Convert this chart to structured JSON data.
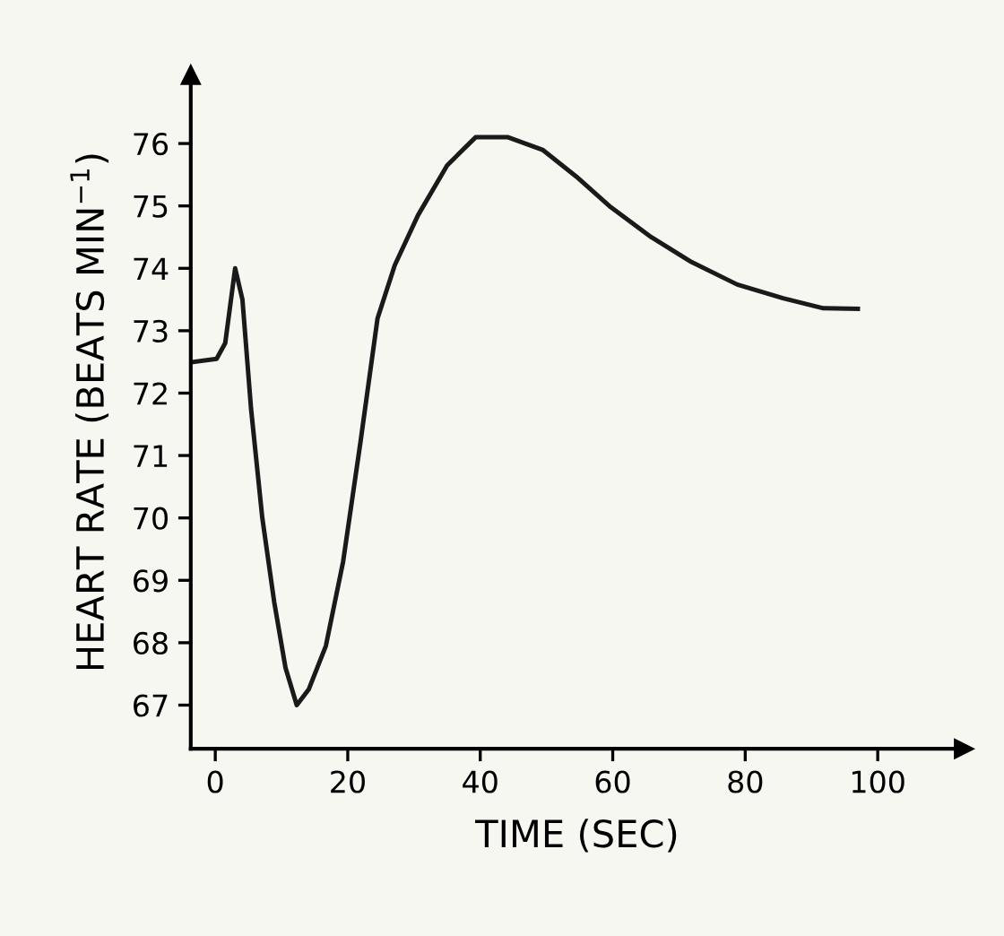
{
  "chart_data": {
    "type": "line",
    "xlabel": "TIME (SEC)",
    "ylabel": "HEART RATE (BEATS MIN$^{−1}$)",
    "x": [
      -3.3,
      0.2,
      1.5,
      3.0,
      4.1,
      5.4,
      7.1,
      8.9,
      10.6,
      12.3,
      14.1,
      16.7,
      19.3,
      21.9,
      24.5,
      27.1,
      30.6,
      35,
      39.3,
      44.2,
      49.4,
      54.5,
      59.7,
      65.8,
      71.9,
      78.8,
      85.7,
      91.8,
      97
    ],
    "series": [
      {
        "color": "#1a1a1a",
        "values": [
          72.5,
          72.55,
          72.8,
          74.0,
          73.5,
          71.75,
          70.0,
          68.65,
          67.6,
          67.0,
          67.25,
          67.95,
          69.3,
          71.2,
          73.2,
          74.05,
          74.85,
          75.65,
          76.1,
          76.1,
          75.9,
          75.47,
          74.98,
          74.5,
          74.1,
          73.74,
          73.52,
          73.36,
          73.35
        ]
      }
    ],
    "xlim": [
      -3.7,
      113
    ],
    "ylim": [
      66.3,
      77.1
    ],
    "xticks": [
      0,
      20,
      40,
      60,
      80,
      100
    ],
    "yticks": [
      67,
      68,
      69,
      70,
      71,
      72,
      73,
      74,
      75,
      76
    ],
    "grid": false,
    "marker": "none",
    "line_style": "solid"
  }
}
